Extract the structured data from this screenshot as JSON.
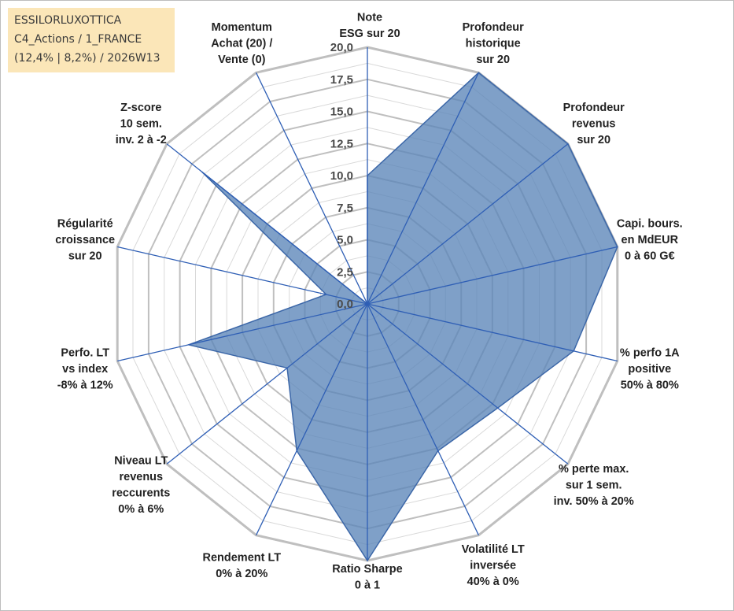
{
  "title_box": {
    "line1": "ESSILORLUXOTTICA",
    "line2": "C4_Actions / 1_FRANCE",
    "line3": "(12,4% | 8,2%) / 2026W13"
  },
  "colors": {
    "fill": "#5b85b9",
    "stroke": "#3c67a8",
    "spoke": "#2f5fb5",
    "ring_major": "#bfbfbf",
    "ring_minor": "#d9d9d9",
    "title_bg": "#fbe6b8"
  },
  "chart_data": {
    "type": "radar",
    "title": "ESSILORLUXOTTICA",
    "rlim": [
      0,
      20
    ],
    "tick_values": [
      0,
      2.5,
      5,
      7.5,
      10,
      12.5,
      15,
      17.5,
      20
    ],
    "tick_labels": [
      "0,0",
      "2,5",
      "5,0",
      "7,5",
      "10,0",
      "12,5",
      "15,0",
      "17,5",
      "20,0"
    ],
    "axes": [
      {
        "label": [
          "Note",
          "ESG sur 20"
        ],
        "value": 10
      },
      {
        "label": [
          "Profondeur",
          "historique",
          "sur 20"
        ],
        "value": 20
      },
      {
        "label": [
          "Profondeur",
          "revenus",
          "sur 20"
        ],
        "value": 20
      },
      {
        "label": [
          "Capi. bours.",
          "en MdEUR",
          "0 à 60 G€"
        ],
        "value": 20
      },
      {
        "label": [
          "% perfo 1A",
          "positive",
          "50% à 80%"
        ],
        "value": 16.5
      },
      {
        "label": [
          "% perte max.",
          "sur 1 sem.",
          "inv. 50% à 20%"
        ],
        "value": 13
      },
      {
        "label": [
          "Volatilité LT",
          "inversée",
          "40% à 0%"
        ],
        "value": 12.7
      },
      {
        "label": [
          "Ratio Sharpe",
          "0 à 1"
        ],
        "value": 20
      },
      {
        "label": [
          "Rendement LT",
          "0% à 20%"
        ],
        "value": 12.7
      },
      {
        "label": [
          "Niveau LT",
          "revenus",
          "reccurents",
          "0% à 6%"
        ],
        "value": 8
      },
      {
        "label": [
          "Perfo. LT",
          "vs index",
          "-8% à 12%"
        ],
        "value": 14.3
      },
      {
        "label": [
          "Régularité",
          "croissance",
          "sur 20"
        ],
        "value": 3.3
      },
      {
        "label": [
          "Z-score",
          "10 sem.",
          "inv. 2 à -2"
        ],
        "value": 16.5
      },
      {
        "label": [
          "Momentum",
          "Achat (20) /",
          "Vente (0)"
        ],
        "value": 0
      }
    ]
  }
}
